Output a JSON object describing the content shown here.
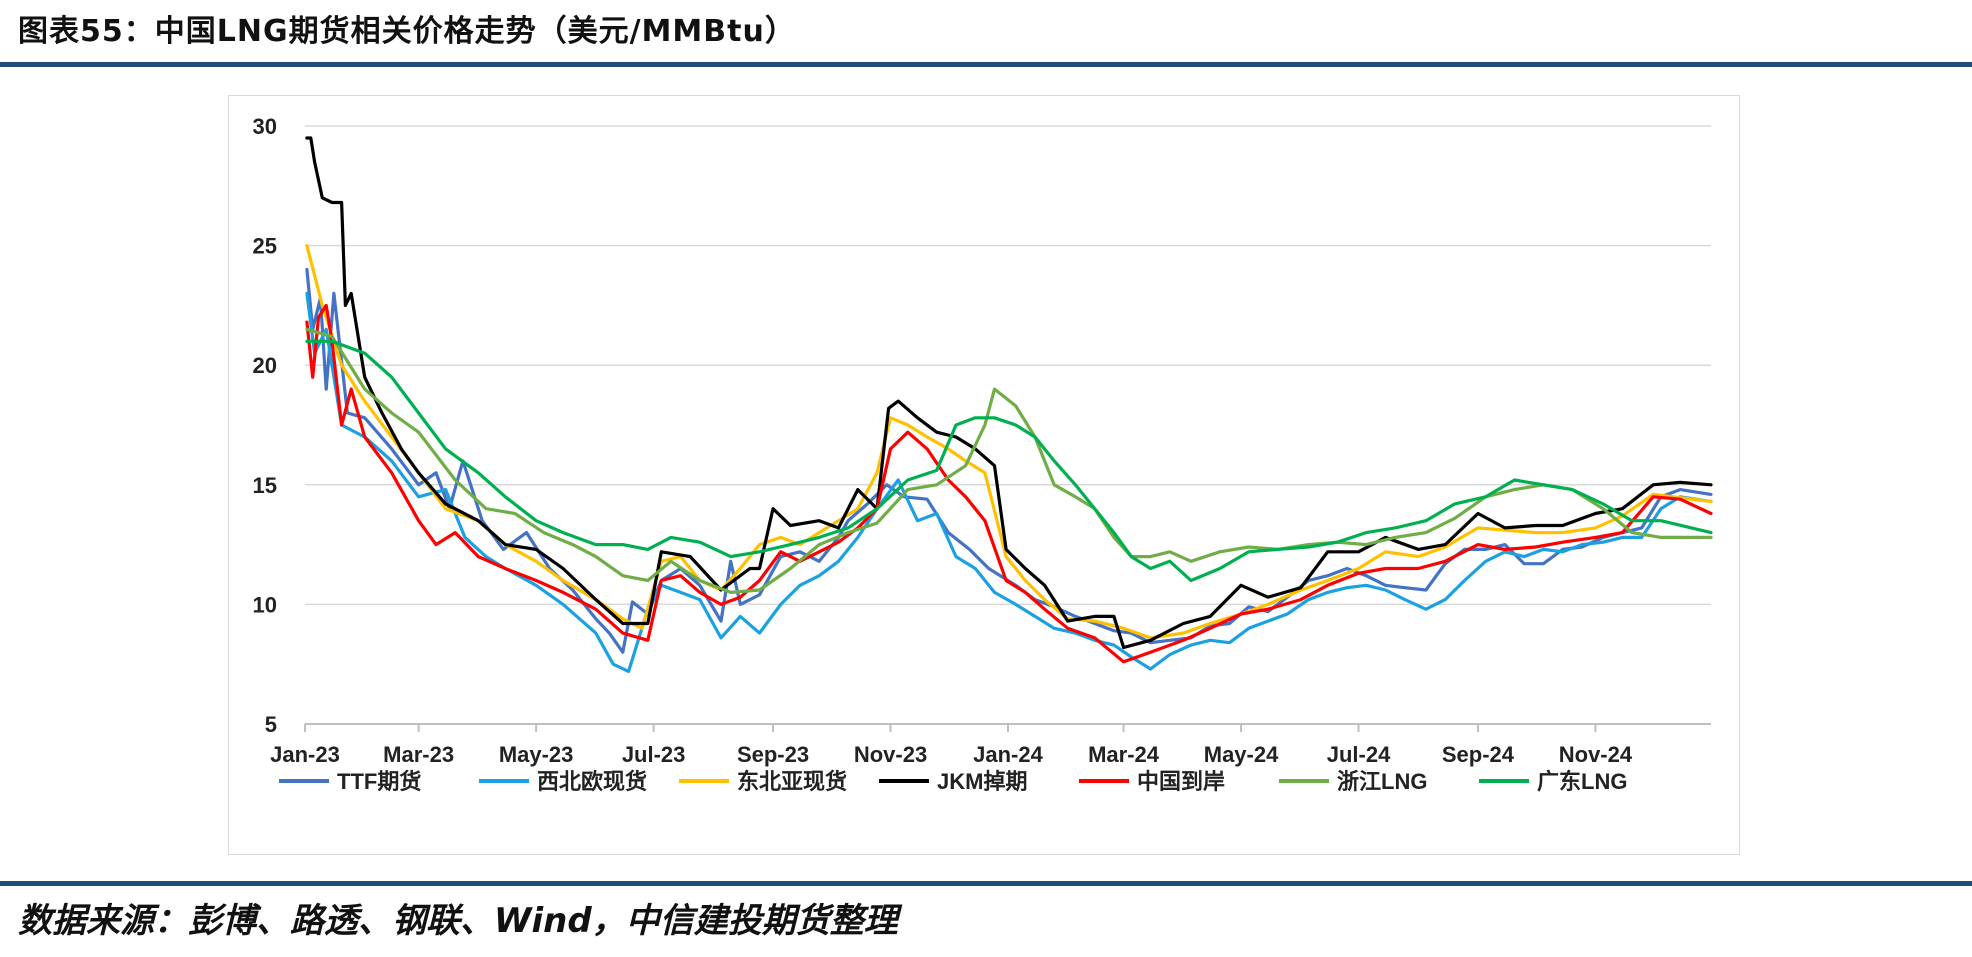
{
  "header": {
    "title": "图表55：中国LNG期货相关价格走势（美元/MMBtu）"
  },
  "footer": {
    "source": "数据来源：彭博、路透、钢联、Wind，中信建投期货整理"
  },
  "chart_data": {
    "type": "line",
    "title": "",
    "xlabel": "",
    "ylabel": "",
    "ylim": [
      5,
      30
    ],
    "yticks": [
      5,
      10,
      15,
      20,
      25,
      30
    ],
    "xlim": [
      "2023-01-01",
      "2024-12-31"
    ],
    "xtick_labels": [
      "Jan-23",
      "Mar-23",
      "May-23",
      "Jul-23",
      "Sep-23",
      "Nov-23",
      "Jan-24",
      "Mar-24",
      "May-24",
      "Jul-24",
      "Sep-24",
      "Nov-24"
    ],
    "xtick_dates": [
      "2023-01-01",
      "2023-03-01",
      "2023-05-01",
      "2023-07-01",
      "2023-09-01",
      "2023-11-01",
      "2024-01-01",
      "2024-03-01",
      "2024-05-01",
      "2024-07-01",
      "2024-09-01",
      "2024-11-01"
    ],
    "grid": "horizontal",
    "legend_position": "bottom",
    "series": [
      {
        "name": "TTF期货",
        "color": "#4472c4",
        "x": [
          "2023-01-02",
          "2023-01-05",
          "2023-01-09",
          "2023-01-12",
          "2023-01-16",
          "2023-01-23",
          "2023-02-01",
          "2023-02-15",
          "2023-03-01",
          "2023-03-10",
          "2023-03-17",
          "2023-03-24",
          "2023-04-03",
          "2023-04-14",
          "2023-04-26",
          "2023-05-08",
          "2023-05-20",
          "2023-06-01",
          "2023-06-08",
          "2023-06-15",
          "2023-06-20",
          "2023-06-28",
          "2023-07-05",
          "2023-07-15",
          "2023-07-25",
          "2023-08-05",
          "2023-08-10",
          "2023-08-15",
          "2023-08-25",
          "2023-09-05",
          "2023-09-15",
          "2023-09-25",
          "2023-10-05",
          "2023-10-10",
          "2023-10-20",
          "2023-10-30",
          "2023-11-08",
          "2023-11-20",
          "2023-12-01",
          "2023-12-12",
          "2023-12-22",
          "2024-01-05",
          "2024-01-15",
          "2024-01-25",
          "2024-02-05",
          "2024-02-15",
          "2024-02-25",
          "2024-03-05",
          "2024-03-15",
          "2024-03-25",
          "2024-04-05",
          "2024-04-15",
          "2024-04-25",
          "2024-05-05",
          "2024-05-15",
          "2024-05-25",
          "2024-06-05",
          "2024-06-15",
          "2024-06-25",
          "2024-07-05",
          "2024-07-15",
          "2024-07-25",
          "2024-08-05",
          "2024-08-15",
          "2024-08-25",
          "2024-09-05",
          "2024-09-15",
          "2024-09-25",
          "2024-10-05",
          "2024-10-15",
          "2024-10-25",
          "2024-11-05",
          "2024-11-15",
          "2024-11-25",
          "2024-12-05",
          "2024-12-15",
          "2024-12-31"
        ],
        "values": [
          24.0,
          21.5,
          22.8,
          19.0,
          23.0,
          18.0,
          17.8,
          16.5,
          15.0,
          15.5,
          14.0,
          16.0,
          13.5,
          12.3,
          13.0,
          11.5,
          10.6,
          9.4,
          8.8,
          8.0,
          10.1,
          9.6,
          11.0,
          11.5,
          10.8,
          9.3,
          11.8,
          10.0,
          10.4,
          12.0,
          12.2,
          11.8,
          12.8,
          13.5,
          14.2,
          15.0,
          14.5,
          14.4,
          13.0,
          12.3,
          11.5,
          10.8,
          10.2,
          9.9,
          9.5,
          9.2,
          8.9,
          8.8,
          8.4,
          8.5,
          8.6,
          9.1,
          9.2,
          9.9,
          9.7,
          10.3,
          11.0,
          11.2,
          11.5,
          11.2,
          10.8,
          10.7,
          10.6,
          11.7,
          12.3,
          12.3,
          12.5,
          11.7,
          11.7,
          12.3,
          12.4,
          12.8,
          13.0,
          13.2,
          14.5,
          14.8,
          14.6
        ]
      },
      {
        "name": "西北欧现货",
        "color": "#1ba1e2",
        "x": [
          "2023-01-02",
          "2023-01-06",
          "2023-01-12",
          "2023-01-20",
          "2023-02-01",
          "2023-02-15",
          "2023-03-01",
          "2023-03-15",
          "2023-03-25",
          "2023-04-05",
          "2023-04-15",
          "2023-05-01",
          "2023-05-15",
          "2023-06-01",
          "2023-06-10",
          "2023-06-18",
          "2023-06-28",
          "2023-07-05",
          "2023-07-15",
          "2023-07-25",
          "2023-08-05",
          "2023-08-15",
          "2023-08-25",
          "2023-09-05",
          "2023-09-15",
          "2023-09-25",
          "2023-10-05",
          "2023-10-15",
          "2023-10-25",
          "2023-11-05",
          "2023-11-15",
          "2023-11-25",
          "2023-12-05",
          "2023-12-15",
          "2023-12-25",
          "2024-01-05",
          "2024-01-15",
          "2024-01-25",
          "2024-02-05",
          "2024-02-15",
          "2024-02-25",
          "2024-03-05",
          "2024-03-15",
          "2024-03-25",
          "2024-04-05",
          "2024-04-15",
          "2024-04-25",
          "2024-05-05",
          "2024-05-15",
          "2024-05-25",
          "2024-06-05",
          "2024-06-15",
          "2024-06-25",
          "2024-07-05",
          "2024-07-15",
          "2024-07-25",
          "2024-08-05",
          "2024-08-15",
          "2024-08-25",
          "2024-09-05",
          "2024-09-15",
          "2024-09-25",
          "2024-10-05",
          "2024-10-15",
          "2024-10-25",
          "2024-11-05",
          "2024-11-15",
          "2024-11-25",
          "2024-12-05",
          "2024-12-15",
          "2024-12-31"
        ],
        "values": [
          23.0,
          20.5,
          21.5,
          17.5,
          17.0,
          16.0,
          14.5,
          14.8,
          12.8,
          12.0,
          11.5,
          10.8,
          10.0,
          8.8,
          7.5,
          7.2,
          9.8,
          10.8,
          10.5,
          10.2,
          8.6,
          9.5,
          8.8,
          10.0,
          10.8,
          11.2,
          11.8,
          12.8,
          14.0,
          15.2,
          13.5,
          13.8,
          12.0,
          11.5,
          10.5,
          10.0,
          9.5,
          9.0,
          8.8,
          8.5,
          8.3,
          7.8,
          7.3,
          7.9,
          8.3,
          8.5,
          8.4,
          9.0,
          9.3,
          9.6,
          10.2,
          10.5,
          10.7,
          10.8,
          10.6,
          10.2,
          9.8,
          10.2,
          11.0,
          11.8,
          12.2,
          12.0,
          12.3,
          12.2,
          12.5,
          12.6,
          12.8,
          12.8,
          14.0,
          14.5,
          14.3
        ]
      },
      {
        "name": "东北亚现货",
        "color": "#ffc000",
        "x": [
          "2023-01-02",
          "2023-01-10",
          "2023-01-20",
          "2023-02-01",
          "2023-02-15",
          "2023-03-01",
          "2023-03-15",
          "2023-04-01",
          "2023-04-15",
          "2023-05-01",
          "2023-05-15",
          "2023-06-01",
          "2023-06-15",
          "2023-06-25",
          "2023-07-05",
          "2023-07-15",
          "2023-07-25",
          "2023-08-05",
          "2023-08-15",
          "2023-08-25",
          "2023-09-05",
          "2023-09-15",
          "2023-09-25",
          "2023-10-05",
          "2023-10-15",
          "2023-10-25",
          "2023-11-01",
          "2023-11-10",
          "2023-11-20",
          "2023-12-01",
          "2023-12-10",
          "2023-12-20",
          "2023-12-31",
          "2024-01-10",
          "2024-01-20",
          "2024-02-01",
          "2024-02-15",
          "2024-03-01",
          "2024-03-15",
          "2024-04-01",
          "2024-04-15",
          "2024-05-01",
          "2024-05-15",
          "2024-06-01",
          "2024-06-15",
          "2024-07-01",
          "2024-07-15",
          "2024-08-01",
          "2024-08-15",
          "2024-09-01",
          "2024-09-15",
          "2024-10-01",
          "2024-10-15",
          "2024-11-01",
          "2024-11-15",
          "2024-12-01",
          "2024-12-31"
        ],
        "values": [
          25.0,
          22.5,
          20.0,
          18.5,
          17.0,
          15.5,
          14.0,
          13.5,
          12.5,
          11.8,
          11.0,
          10.2,
          9.4,
          9.0,
          11.8,
          12.0,
          11.0,
          10.6,
          11.5,
          12.5,
          12.8,
          12.5,
          13.0,
          13.5,
          14.0,
          15.5,
          17.8,
          17.5,
          17.0,
          16.5,
          16.0,
          15.5,
          12.0,
          11.0,
          10.2,
          9.4,
          9.3,
          9.0,
          8.6,
          8.8,
          9.2,
          9.6,
          10.0,
          10.6,
          11.0,
          11.5,
          12.2,
          12.0,
          12.4,
          13.2,
          13.1,
          13.0,
          13.0,
          13.2,
          13.7,
          14.6,
          14.3
        ]
      },
      {
        "name": "JKM掉期",
        "color": "#000000",
        "x": [
          "2023-01-02",
          "2023-01-04",
          "2023-01-06",
          "2023-01-10",
          "2023-01-15",
          "2023-01-20",
          "2023-01-22",
          "2023-01-25",
          "2023-02-01",
          "2023-02-10",
          "2023-02-20",
          "2023-03-01",
          "2023-03-15",
          "2023-04-01",
          "2023-04-15",
          "2023-05-01",
          "2023-05-15",
          "2023-06-01",
          "2023-06-15",
          "2023-06-28",
          "2023-07-05",
          "2023-07-20",
          "2023-08-05",
          "2023-08-20",
          "2023-08-25",
          "2023-09-01",
          "2023-09-10",
          "2023-09-25",
          "2023-10-05",
          "2023-10-15",
          "2023-10-25",
          "2023-10-31",
          "2023-11-05",
          "2023-11-15",
          "2023-11-25",
          "2023-12-05",
          "2023-12-15",
          "2023-12-25",
          "2023-12-31",
          "2024-01-10",
          "2024-01-20",
          "2024-02-01",
          "2024-02-15",
          "2024-02-25",
          "2024-03-01",
          "2024-03-15",
          "2024-04-01",
          "2024-04-15",
          "2024-05-01",
          "2024-05-15",
          "2024-06-01",
          "2024-06-15",
          "2024-07-01",
          "2024-07-15",
          "2024-08-01",
          "2024-08-15",
          "2024-09-01",
          "2024-09-15",
          "2024-10-01",
          "2024-10-15",
          "2024-11-01",
          "2024-11-15",
          "2024-12-01",
          "2024-12-15",
          "2024-12-31"
        ],
        "values": [
          29.5,
          29.5,
          28.5,
          27.0,
          26.8,
          26.8,
          22.5,
          23.0,
          19.5,
          18.0,
          16.5,
          15.5,
          14.2,
          13.5,
          12.5,
          12.3,
          11.5,
          10.2,
          9.2,
          9.2,
          12.2,
          12.0,
          10.6,
          11.5,
          11.5,
          14.0,
          13.3,
          13.5,
          13.2,
          14.8,
          14.0,
          18.2,
          18.5,
          17.8,
          17.2,
          17.0,
          16.5,
          15.8,
          12.3,
          11.5,
          10.8,
          9.3,
          9.5,
          9.5,
          8.2,
          8.5,
          9.2,
          9.5,
          10.8,
          10.3,
          10.7,
          12.2,
          12.2,
          12.8,
          12.3,
          12.5,
          13.8,
          13.2,
          13.3,
          13.3,
          13.8,
          14.0,
          15.0,
          15.1,
          15.0
        ]
      },
      {
        "name": "中国到岸",
        "color": "#ff0000",
        "x": [
          "2023-01-02",
          "2023-01-05",
          "2023-01-08",
          "2023-01-12",
          "2023-01-15",
          "2023-01-20",
          "2023-01-25",
          "2023-02-01",
          "2023-02-15",
          "2023-03-01",
          "2023-03-10",
          "2023-03-20",
          "2023-04-01",
          "2023-04-15",
          "2023-05-01",
          "2023-05-15",
          "2023-06-01",
          "2023-06-15",
          "2023-06-28",
          "2023-07-05",
          "2023-07-15",
          "2023-07-25",
          "2023-08-05",
          "2023-08-15",
          "2023-08-25",
          "2023-09-05",
          "2023-09-15",
          "2023-09-25",
          "2023-10-05",
          "2023-10-15",
          "2023-10-25",
          "2023-11-01",
          "2023-11-10",
          "2023-11-20",
          "2023-12-01",
          "2023-12-10",
          "2023-12-20",
          "2023-12-31",
          "2024-01-10",
          "2024-01-20",
          "2024-02-01",
          "2024-02-15",
          "2024-03-01",
          "2024-03-15",
          "2024-04-01",
          "2024-04-15",
          "2024-05-01",
          "2024-05-15",
          "2024-06-01",
          "2024-06-15",
          "2024-07-01",
          "2024-07-15",
          "2024-08-01",
          "2024-08-15",
          "2024-09-01",
          "2024-09-15",
          "2024-10-01",
          "2024-10-15",
          "2024-11-01",
          "2024-11-15",
          "2024-12-01",
          "2024-12-15",
          "2024-12-31"
        ],
        "values": [
          21.8,
          19.5,
          22.0,
          22.5,
          21.0,
          17.5,
          19.0,
          17.0,
          15.5,
          13.5,
          12.5,
          13.0,
          12.0,
          11.5,
          11.0,
          10.5,
          9.8,
          8.8,
          8.5,
          11.0,
          11.2,
          10.5,
          10.0,
          10.3,
          11.0,
          12.2,
          11.8,
          12.2,
          12.6,
          13.2,
          14.0,
          16.5,
          17.2,
          16.5,
          15.2,
          14.5,
          13.5,
          11.0,
          10.5,
          9.8,
          9.0,
          8.6,
          7.6,
          8.0,
          8.5,
          9.0,
          9.6,
          9.8,
          10.2,
          10.8,
          11.3,
          11.5,
          11.5,
          11.8,
          12.5,
          12.3,
          12.4,
          12.6,
          12.8,
          13.0,
          14.5,
          14.4,
          13.8
        ]
      },
      {
        "name": "浙江LNG",
        "color": "#70ad47",
        "x": [
          "2023-01-02",
          "2023-01-15",
          "2023-02-01",
          "2023-02-15",
          "2023-03-01",
          "2023-03-20",
          "2023-04-05",
          "2023-04-20",
          "2023-05-05",
          "2023-05-20",
          "2023-06-01",
          "2023-06-15",
          "2023-06-28",
          "2023-07-10",
          "2023-07-25",
          "2023-08-10",
          "2023-08-25",
          "2023-09-10",
          "2023-09-25",
          "2023-10-10",
          "2023-10-25",
          "2023-11-10",
          "2023-11-25",
          "2023-12-10",
          "2023-12-20",
          "2023-12-25",
          "2024-01-05",
          "2024-01-15",
          "2024-01-25",
          "2024-02-05",
          "2024-02-15",
          "2024-02-25",
          "2024-03-05",
          "2024-03-15",
          "2024-03-25",
          "2024-04-05",
          "2024-04-20",
          "2024-05-05",
          "2024-05-20",
          "2024-06-05",
          "2024-06-20",
          "2024-07-05",
          "2024-07-20",
          "2024-08-05",
          "2024-08-20",
          "2024-09-05",
          "2024-09-20",
          "2024-10-05",
          "2024-10-20",
          "2024-11-05",
          "2024-11-20",
          "2024-12-05",
          "2024-12-31"
        ],
        "values": [
          21.5,
          21.2,
          19.0,
          18.0,
          17.2,
          15.2,
          14.0,
          13.8,
          13.0,
          12.5,
          12.0,
          11.2,
          11.0,
          11.8,
          11.0,
          10.5,
          10.6,
          11.5,
          12.5,
          13.0,
          13.4,
          14.8,
          15.0,
          15.8,
          17.5,
          19.0,
          18.3,
          17.0,
          15.0,
          14.5,
          14.0,
          12.8,
          12.0,
          12.0,
          12.2,
          11.8,
          12.2,
          12.4,
          12.3,
          12.5,
          12.6,
          12.5,
          12.8,
          13.0,
          13.6,
          14.5,
          14.8,
          15.0,
          14.8,
          14.0,
          13.0,
          12.8,
          12.8
        ]
      },
      {
        "name": "广东LNG",
        "color": "#00b050",
        "x": [
          "2023-01-02",
          "2023-01-15",
          "2023-02-01",
          "2023-02-15",
          "2023-03-01",
          "2023-03-15",
          "2023-04-01",
          "2023-04-15",
          "2023-05-01",
          "2023-05-15",
          "2023-06-01",
          "2023-06-15",
          "2023-06-28",
          "2023-07-10",
          "2023-07-25",
          "2023-08-10",
          "2023-08-25",
          "2023-09-10",
          "2023-09-25",
          "2023-10-10",
          "2023-10-25",
          "2023-11-10",
          "2023-11-25",
          "2023-12-05",
          "2023-12-15",
          "2023-12-25",
          "2024-01-05",
          "2024-01-15",
          "2024-01-25",
          "2024-02-05",
          "2024-02-15",
          "2024-02-25",
          "2024-03-05",
          "2024-03-15",
          "2024-03-25",
          "2024-04-05",
          "2024-04-20",
          "2024-05-05",
          "2024-05-20",
          "2024-06-05",
          "2024-06-20",
          "2024-07-05",
          "2024-07-20",
          "2024-08-05",
          "2024-08-20",
          "2024-09-05",
          "2024-09-20",
          "2024-10-05",
          "2024-10-20",
          "2024-11-05",
          "2024-11-20",
          "2024-12-05",
          "2024-12-31"
        ],
        "values": [
          21.0,
          21.0,
          20.5,
          19.5,
          18.0,
          16.5,
          15.5,
          14.5,
          13.5,
          13.0,
          12.5,
          12.5,
          12.3,
          12.8,
          12.6,
          12.0,
          12.2,
          12.5,
          12.8,
          13.2,
          14.0,
          15.2,
          15.6,
          17.5,
          17.8,
          17.8,
          17.5,
          17.0,
          16.0,
          15.0,
          14.0,
          13.0,
          12.0,
          11.5,
          11.8,
          11.0,
          11.5,
          12.2,
          12.3,
          12.4,
          12.6,
          13.0,
          13.2,
          13.5,
          14.2,
          14.5,
          15.2,
          15.0,
          14.8,
          14.2,
          13.5,
          13.5,
          13.0
        ]
      }
    ]
  }
}
